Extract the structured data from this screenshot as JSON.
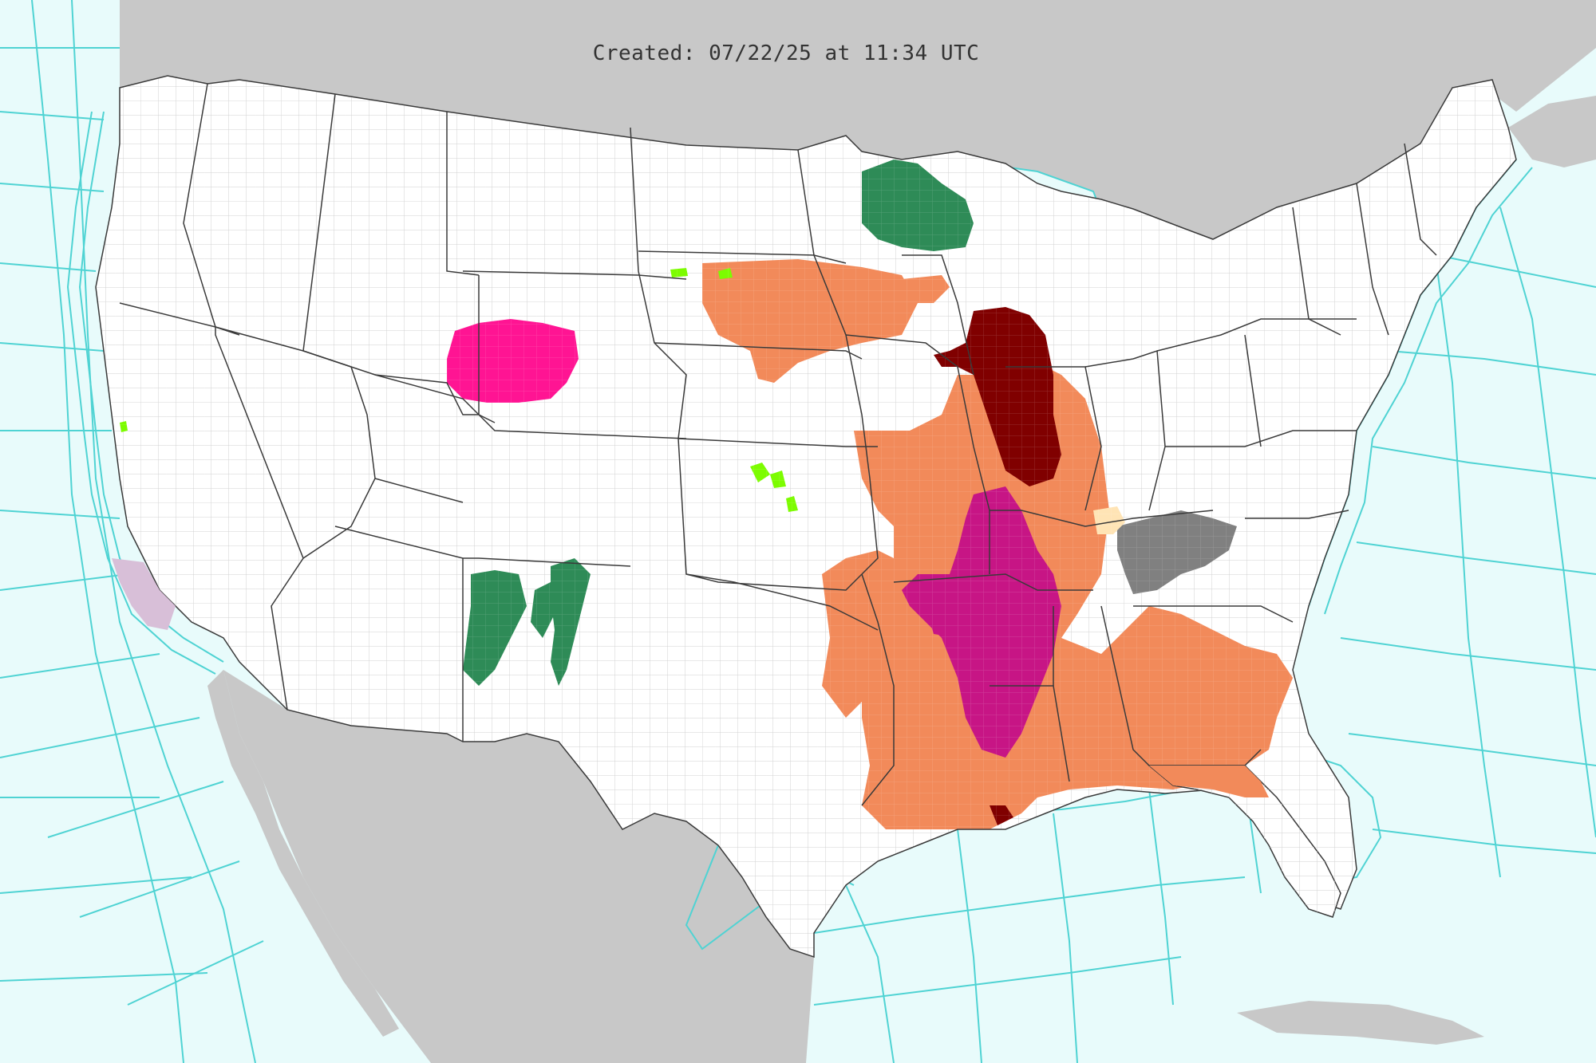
{
  "header": {
    "created_stamp": "Created: 07/22/25 at 11:34 UTC"
  },
  "colors": {
    "ocean": "#e8fbfb",
    "land_foreign": "#c8c8c8",
    "land_us": "#ffffff",
    "zone_lines": "#4fd3d3",
    "county_lines": "#c9c9c9",
    "state_lines": "#3a3a3a",
    "heat_advisory": "#f28a5a",
    "extreme_heat_warning": "#c71585",
    "extreme_heat_watch": "#800000",
    "red_flag_warning": "#ff1493",
    "flood_watch": "#2e8b57",
    "air_quality_alert": "#808080",
    "small_craft_advisory": "#d8bfd8",
    "special_weather_statement": "#ffe4b5",
    "beach_hazards": "#ff9f1a",
    "frost_advisory": "#7cfc00"
  },
  "layers": [
    {
      "name": "heat-advisory-area",
      "color_key": "heat_advisory"
    },
    {
      "name": "extreme-heat-warning-area",
      "color_key": "extreme_heat_warning"
    },
    {
      "name": "extreme-heat-watch-area",
      "color_key": "extreme_heat_watch"
    },
    {
      "name": "red-flag-area",
      "color_key": "red_flag_warning"
    },
    {
      "name": "flood-watch-area",
      "color_key": "flood_watch"
    },
    {
      "name": "air-quality-area",
      "color_key": "air_quality_alert"
    },
    {
      "name": "small-craft-area",
      "color_key": "small_craft_advisory"
    },
    {
      "name": "special-statement-area",
      "color_key": "special_weather_statement"
    },
    {
      "name": "beach-hazard-area",
      "color_key": "beach_hazards"
    },
    {
      "name": "minor-advisory-area",
      "color_key": "frost_advisory"
    }
  ]
}
